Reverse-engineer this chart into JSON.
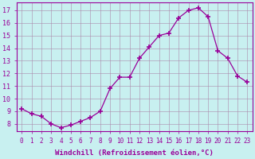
{
  "x": [
    0,
    1,
    2,
    3,
    4,
    5,
    6,
    7,
    8,
    9,
    10,
    11,
    12,
    13,
    14,
    15,
    16,
    17,
    18,
    19,
    20,
    21,
    22,
    23
  ],
  "y": [
    9.2,
    8.8,
    8.6,
    8.0,
    7.7,
    7.9,
    8.2,
    8.5,
    9.0,
    10.8,
    11.7,
    11.7,
    13.2,
    14.1,
    15.0,
    15.2,
    16.4,
    17.0,
    17.2,
    16.5,
    13.8,
    13.2,
    11.8,
    11.3
  ],
  "line_color": "#990099",
  "marker_color": "#990099",
  "bg_color": "#c8f0f0",
  "grid_color": "#aa88aa",
  "xlabel": "Windchill (Refroidissement éolien,°C)",
  "ylabel_ticks": [
    8,
    9,
    10,
    11,
    12,
    13,
    14,
    15,
    16,
    17
  ],
  "xlim": [
    -0.5,
    23.5
  ],
  "ylim": [
    7.4,
    17.6
  ],
  "xlabel_color": "#990099",
  "tick_color": "#990099",
  "spine_color": "#990099",
  "tick_fontsize": 5.5,
  "xlabel_fontsize": 6.5
}
